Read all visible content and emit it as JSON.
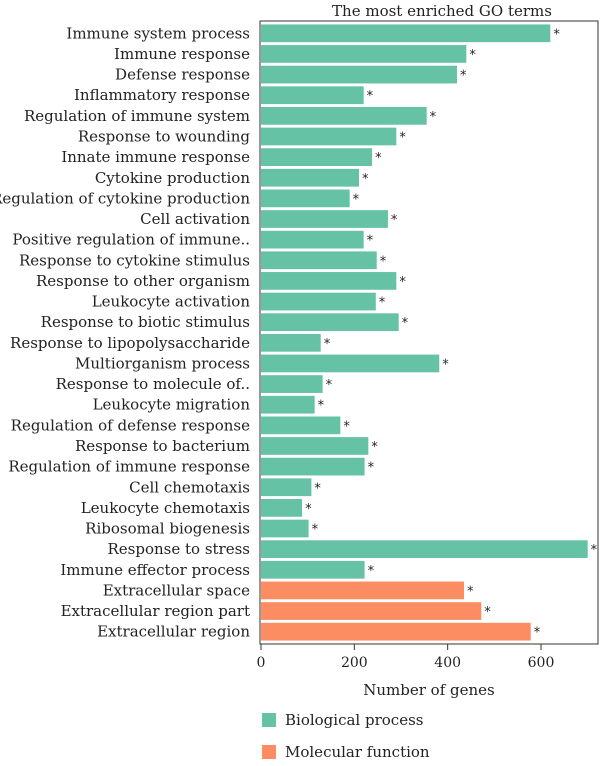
{
  "chart_data": {
    "type": "bar",
    "orientation": "horizontal",
    "title": "The most enriched GO terms",
    "xlabel": "Number of genes",
    "xlim": [
      0,
      720
    ],
    "xticks": [
      0,
      200,
      400,
      600
    ],
    "significance_marker": "*",
    "categories": [
      "Immune system process",
      "Immune response",
      "Defense response",
      "Inflammatory response",
      "Regulation of immune system",
      "Response to wounding",
      "Innate immune response",
      "Cytokine production",
      "Regulation of cytokine production",
      "Cell activation",
      "Positive regulation of immune..",
      "Response to cytokine stimulus",
      "Response to other organism",
      "Leukocyte activation",
      "Response to biotic stimulus",
      "Response to lipopolysaccharide",
      "Multiorganism process",
      "Response to molecule of..",
      "Leukocyte migration",
      "Regulation of defense response",
      "Response to bacterium",
      "Regulation of immune response",
      "Cell chemotaxis",
      "Leukocyte chemotaxis",
      "Ribosomal biogenesis",
      "Response to stress",
      "Immune effector process",
      "Extracellular space",
      "Extracellular region part",
      "Extracellular region"
    ],
    "values": [
      620,
      440,
      420,
      220,
      355,
      290,
      238,
      210,
      190,
      272,
      220,
      248,
      290,
      246,
      295,
      128,
      382,
      132,
      115,
      170,
      230,
      222,
      108,
      88,
      102,
      700,
      222,
      435,
      472,
      578
    ],
    "groups": [
      "Biological process",
      "Biological process",
      "Biological process",
      "Biological process",
      "Biological process",
      "Biological process",
      "Biological process",
      "Biological process",
      "Biological process",
      "Biological process",
      "Biological process",
      "Biological process",
      "Biological process",
      "Biological process",
      "Biological process",
      "Biological process",
      "Biological process",
      "Biological process",
      "Biological process",
      "Biological process",
      "Biological process",
      "Biological process",
      "Biological process",
      "Biological process",
      "Biological process",
      "Biological process",
      "Biological process",
      "Molecular function",
      "Molecular function",
      "Molecular function"
    ],
    "legend": [
      {
        "name": "Biological process",
        "color": "#66c2a5"
      },
      {
        "name": "Molecular function",
        "color": "#fc8d62"
      }
    ],
    "legend_position": "bottom-center",
    "grid": false
  }
}
